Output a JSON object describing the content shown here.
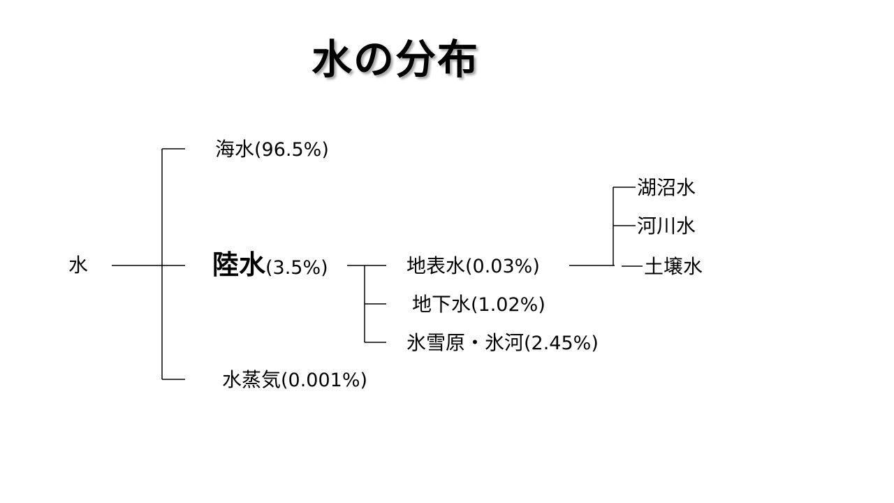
{
  "title": "水の分布",
  "root": "水",
  "level1": {
    "sea": {
      "name": "海水",
      "pct": "(96.5%)"
    },
    "land": {
      "name": "陸水",
      "pct": "(3.5%)"
    },
    "vapor": {
      "name": "水蒸気",
      "pct": "(0.001%)"
    }
  },
  "level2": {
    "surface": {
      "name": "地表水",
      "pct": "(0.03%)"
    },
    "ground": {
      "name": "地下水",
      "pct": "(1.02%)"
    },
    "ice": {
      "name": "氷雪原・氷河",
      "pct": "(2.45%)"
    }
  },
  "level3": {
    "lake": "湖沼水",
    "river": "河川水",
    "soil": "土壌水"
  }
}
